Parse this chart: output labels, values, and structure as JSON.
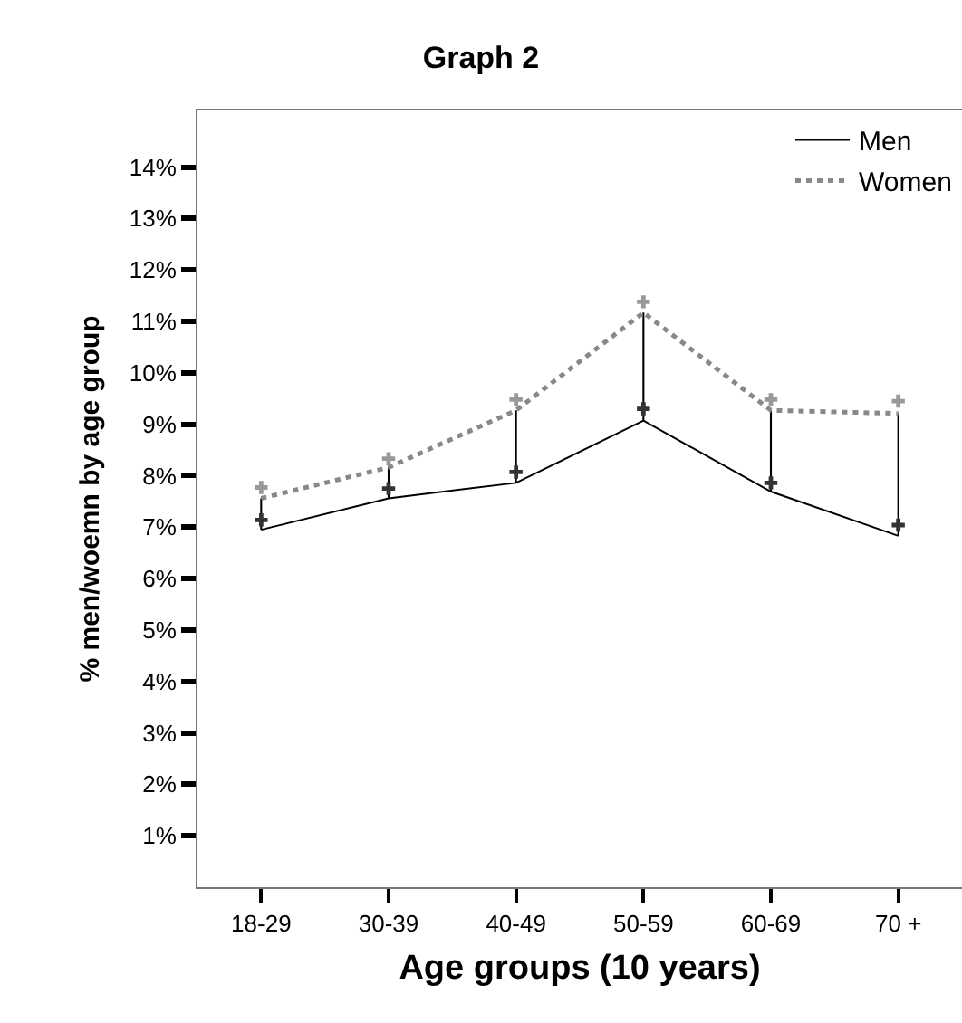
{
  "chart_data": {
    "type": "line",
    "title": "Graph 2",
    "xlabel": "Age groups (10 years)",
    "ylabel": "% men/woemn by age group",
    "categories": [
      "18-29",
      "30-39",
      "40-49",
      "50-59",
      "60-69",
      "70 +"
    ],
    "series": [
      {
        "name": "Men",
        "color": "#000000",
        "line_style": "solid",
        "marker": "none",
        "values": [
          6.95,
          7.56,
          7.86,
          9.07,
          7.69,
          6.83
        ]
      },
      {
        "name": "Women",
        "color": "#888888",
        "line_style": "dotted",
        "marker": "none",
        "values": [
          7.56,
          8.16,
          9.27,
          11.17,
          9.27,
          9.21
        ]
      },
      {
        "type": "bar",
        "color": "#000000",
        "base": [
          6.95,
          7.56,
          7.86,
          9.07,
          7.69,
          6.83
        ],
        "values": [
          0.61,
          0.6,
          1.41,
          2.1,
          1.58,
          2.38
        ]
      },
      {
        "type": "scatter",
        "color": "#333333",
        "marker": "cross",
        "values": [
          7.14,
          7.75,
          8.07,
          9.3,
          7.86,
          7.04
        ]
      },
      {
        "type": "scatter",
        "color": "#999999",
        "marker": "cross",
        "values": [
          7.77,
          8.33,
          9.48,
          11.38,
          9.48,
          9.45
        ]
      }
    ],
    "ylim": [
      0,
      15.1
    ],
    "yticks": [
      {
        "value": 1,
        "label": "1%"
      },
      {
        "value": 2,
        "label": "2%"
      },
      {
        "value": 3,
        "label": "3%"
      },
      {
        "value": 4,
        "label": "4%"
      },
      {
        "value": 5,
        "label": "5%"
      },
      {
        "value": 6,
        "label": "6%"
      },
      {
        "value": 7,
        "label": "7%"
      },
      {
        "value": 8,
        "label": "8%"
      },
      {
        "value": 9,
        "label": "9%"
      },
      {
        "value": 10,
        "label": "10%"
      },
      {
        "value": 11,
        "label": "11%"
      },
      {
        "value": 12,
        "label": "12%"
      },
      {
        "value": 13,
        "label": "13%"
      },
      {
        "value": 14,
        "label": "14%"
      }
    ],
    "grid": false,
    "legend": "top right"
  }
}
